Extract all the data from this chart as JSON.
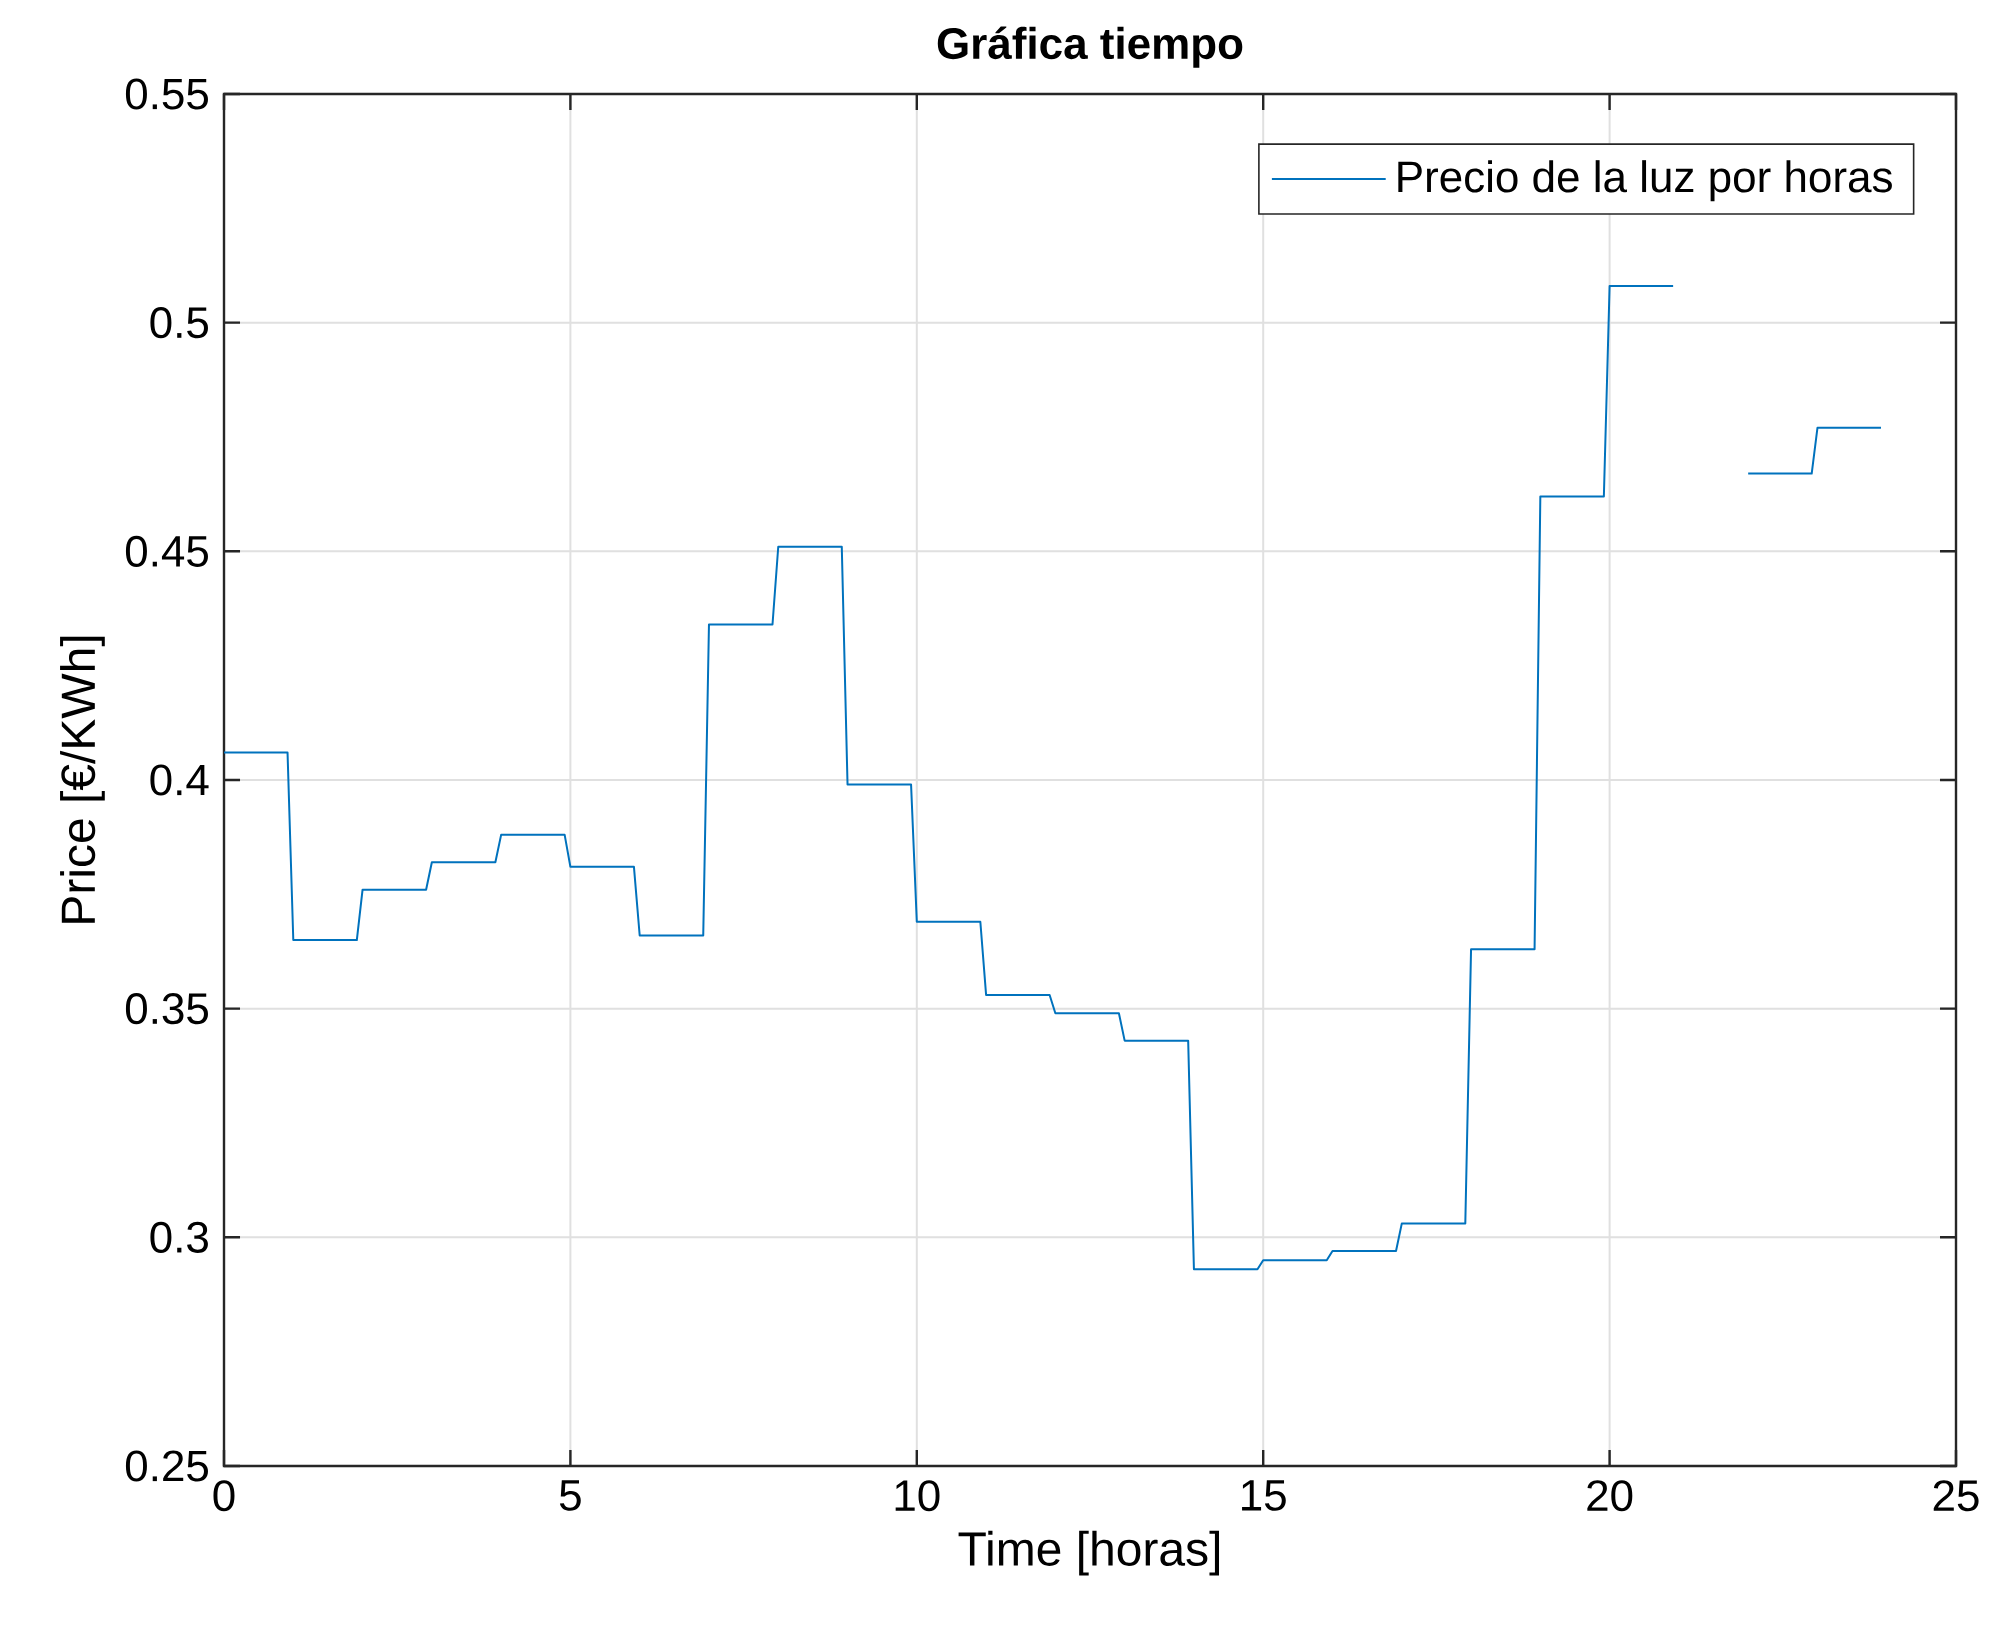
{
  "chart_data": {
    "type": "line",
    "title": "Gráfica tiempo",
    "xlabel": "Time [horas]",
    "ylabel": "Price [€/KWh]",
    "xlim": [
      0,
      25
    ],
    "ylim": [
      0.25,
      0.55
    ],
    "xticks": [
      0,
      5,
      10,
      15,
      20,
      25
    ],
    "yticks": [
      0.25,
      0.3,
      0.35,
      0.4,
      0.45,
      0.5,
      0.55
    ],
    "grid": true,
    "legend": "top right",
    "line_style": "solid",
    "series": [
      {
        "name": "Precio de la luz por horas",
        "color": "#0072bd",
        "x": [
          0,
          0.917,
          1,
          1.917,
          2,
          2.917,
          3,
          3.917,
          4,
          4.917,
          5,
          5.917,
          6,
          6.917,
          7,
          7.917,
          8,
          8.917,
          9,
          9.917,
          10,
          10.917,
          11,
          11.917,
          12,
          12.917,
          13,
          13.917,
          14,
          14.917,
          15,
          15.917,
          16,
          16.917,
          17,
          17.917,
          18,
          18.917,
          19,
          19.917,
          20,
          20.917,
          21,
          21.917,
          22,
          22.917,
          23,
          23.917
        ],
        "values": [
          0.406,
          0.406,
          0.365,
          0.365,
          0.376,
          0.376,
          0.382,
          0.382,
          0.388,
          0.388,
          0.381,
          0.381,
          0.366,
          0.366,
          0.434,
          0.434,
          0.451,
          0.451,
          0.399,
          0.399,
          0.369,
          0.369,
          0.353,
          0.353,
          0.349,
          0.349,
          0.343,
          0.343,
          0.293,
          0.293,
          0.295,
          0.295,
          0.297,
          0.297,
          0.303,
          0.303,
          0.363,
          0.363,
          0.462,
          0.462,
          0.508,
          0.508,
          null,
          null,
          0.467,
          0.467,
          0.477,
          0.477
        ]
      }
    ]
  }
}
